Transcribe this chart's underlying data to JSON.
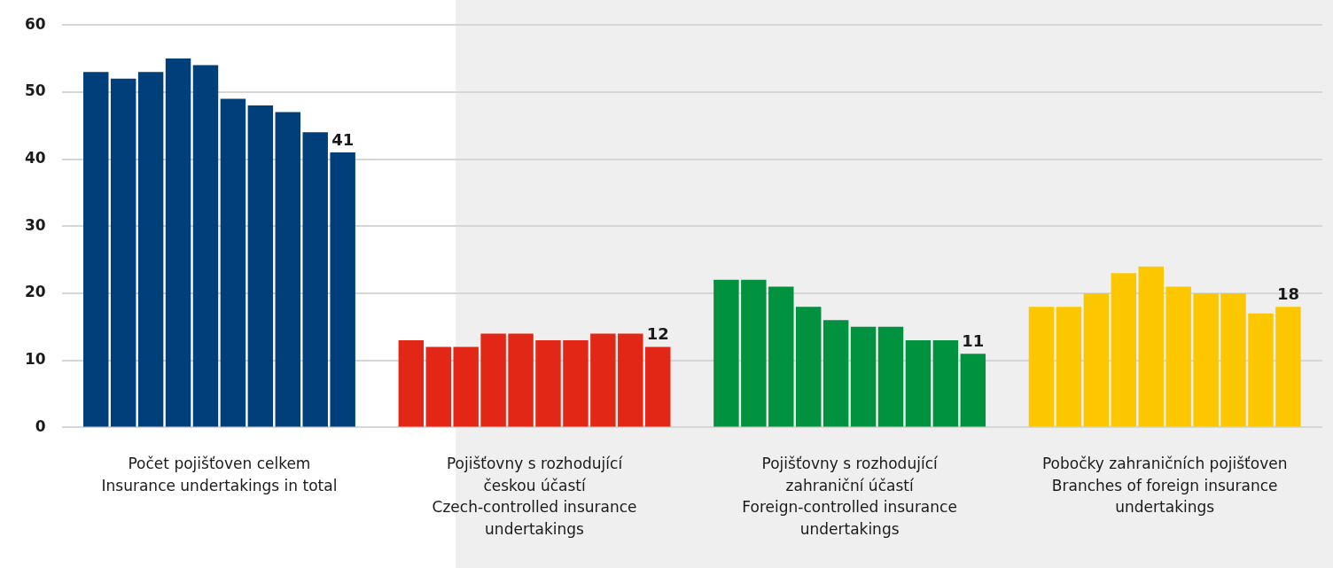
{
  "chart_data": {
    "type": "bar",
    "categories": [
      "Počet pojišťoven celkem\nInsurance undertakings in total",
      "Pojišťovny s rozhodující\nčeskou účastí\nCzech-controlled insurance\nundertakings",
      "Pojišťovny s rozhodující\nzahraniční účastí\nForeign-controlled insurance\nundertakings",
      "Pobočky zahraničních pojišťoven\nBranches of foreign insurance\nundertakings"
    ],
    "series": [
      {
        "colors": [
          "#003f7a",
          "#e32717",
          "#00923f",
          "#fdc700"
        ],
        "values": [
          53,
          13,
          22,
          18
        ]
      },
      {
        "colors": [
          "#003f7a",
          "#e32717",
          "#00923f",
          "#fdc700"
        ],
        "values": [
          52,
          12,
          22,
          18
        ]
      },
      {
        "colors": [
          "#003f7a",
          "#e32717",
          "#00923f",
          "#fdc700"
        ],
        "values": [
          53,
          12,
          21,
          20
        ]
      },
      {
        "colors": [
          "#003f7a",
          "#e32717",
          "#00923f",
          "#fdc700"
        ],
        "values": [
          55,
          14,
          18,
          23
        ]
      },
      {
        "colors": [
          "#003f7a",
          "#e32717",
          "#00923f",
          "#fdc700"
        ],
        "values": [
          54,
          14,
          16,
          24
        ]
      },
      {
        "colors": [
          "#003f7a",
          "#e32717",
          "#00923f",
          "#fdc700"
        ],
        "values": [
          49,
          13,
          15,
          21
        ]
      },
      {
        "colors": [
          "#003f7a",
          "#e32717",
          "#00923f",
          "#fdc700"
        ],
        "values": [
          48,
          13,
          15,
          20
        ]
      },
      {
        "colors": [
          "#003f7a",
          "#e32717",
          "#00923f",
          "#fdc700"
        ],
        "values": [
          47,
          14,
          13,
          20
        ]
      },
      {
        "colors": [
          "#003f7a",
          "#e32717",
          "#00923f",
          "#fdc700"
        ],
        "values": [
          44,
          14,
          13,
          17
        ]
      },
      {
        "colors": [
          "#003f7a",
          "#e32717",
          "#00923f",
          "#fdc700"
        ],
        "values": [
          41,
          12,
          11,
          18
        ],
        "value_labels": [
          "41",
          "12",
          "11",
          "18"
        ]
      }
    ],
    "bands": [
      {
        "axis": "x",
        "from": "Pojišťovny s rozhodující\nčeskou účastí\nCzech-controlled insurance\nundertakings",
        "to": "Pobočky zahraničních pojišťoven\nBranches of foreign insurance\nundertakings",
        "color": "#efefef"
      }
    ],
    "ylim": [
      0,
      60
    ],
    "yticks": [
      0,
      10,
      20,
      30,
      40,
      50,
      60
    ],
    "grid": "y",
    "legend": false
  }
}
